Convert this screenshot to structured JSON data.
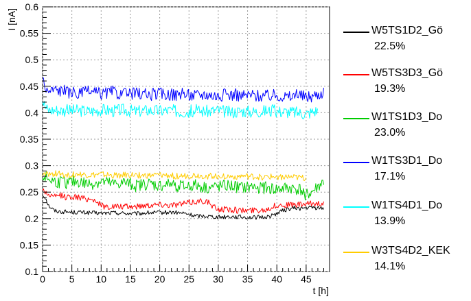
{
  "chart_data": {
    "type": "line",
    "xlabel": "t [h]",
    "ylabel": "I [nA]",
    "xlim": [
      0,
      49
    ],
    "ylim": [
      0.1,
      0.6
    ],
    "x_ticks": [
      0,
      5,
      10,
      15,
      20,
      25,
      30,
      35,
      40,
      45
    ],
    "y_ticks": [
      0.1,
      0.15,
      0.2,
      0.25,
      0.3,
      0.35,
      0.4,
      0.45,
      0.5,
      0.55,
      0.6
    ],
    "x_tick_labels": [
      "0",
      "5",
      "10",
      "15",
      "20",
      "25",
      "30",
      "35",
      "40",
      "45"
    ],
    "y_tick_labels": [
      "0.1",
      "0.15",
      "0.2",
      "0.25",
      "0.3",
      "0.35",
      "0.4",
      "0.45",
      "0.5",
      "0.55",
      "0.6"
    ],
    "grid": true,
    "legend_position": "right",
    "series": [
      {
        "name": "W5TS1D2_Gö",
        "percent": "22.5%",
        "color": "#000000",
        "x": [
          0,
          0.5,
          1,
          1.5,
          2,
          3,
          4,
          5,
          6,
          8,
          10,
          12,
          14,
          16,
          18,
          20,
          22,
          24,
          25,
          26,
          28,
          30,
          32,
          34,
          36,
          38,
          39,
          40,
          41,
          42,
          43,
          44,
          45,
          46,
          47,
          48
        ],
        "y": [
          0.245,
          0.24,
          0.225,
          0.22,
          0.215,
          0.213,
          0.213,
          0.212,
          0.212,
          0.211,
          0.21,
          0.211,
          0.21,
          0.209,
          0.211,
          0.211,
          0.212,
          0.21,
          0.208,
          0.205,
          0.205,
          0.203,
          0.204,
          0.203,
          0.202,
          0.203,
          0.205,
          0.21,
          0.215,
          0.218,
          0.22,
          0.219,
          0.22,
          0.221,
          0.22,
          0.22
        ]
      },
      {
        "name": "W5TS3D3_Gö",
        "percent": "19.3%",
        "color": "#ff0000",
        "x": [
          0,
          1,
          2,
          3,
          4,
          5,
          6,
          7,
          8,
          9,
          10,
          11,
          12,
          14,
          16,
          18,
          20,
          22,
          24,
          26,
          28,
          29,
          30,
          31,
          32,
          34,
          36,
          38,
          40,
          42,
          44,
          46,
          48
        ],
        "y": [
          0.255,
          0.245,
          0.24,
          0.245,
          0.24,
          0.242,
          0.24,
          0.238,
          0.237,
          0.235,
          0.225,
          0.222,
          0.223,
          0.222,
          0.223,
          0.226,
          0.227,
          0.226,
          0.228,
          0.232,
          0.234,
          0.222,
          0.218,
          0.218,
          0.217,
          0.215,
          0.216,
          0.217,
          0.225,
          0.226,
          0.226,
          0.228,
          0.23
        ]
      },
      {
        "name": "W1TS1D3_Do",
        "percent": "23.0%",
        "color": "#00cc00",
        "x": [
          0,
          2,
          4,
          6,
          8,
          10,
          12,
          14,
          16,
          18,
          20,
          22,
          24,
          26,
          28,
          30,
          32,
          34,
          36,
          38,
          40,
          42,
          44,
          45,
          46,
          47,
          48
        ],
        "y": [
          0.28,
          0.27,
          0.268,
          0.27,
          0.265,
          0.27,
          0.265,
          0.268,
          0.262,
          0.266,
          0.262,
          0.265,
          0.26,
          0.263,
          0.258,
          0.26,
          0.262,
          0.258,
          0.26,
          0.258,
          0.255,
          0.258,
          0.255,
          0.245,
          0.25,
          0.26,
          0.27
        ]
      },
      {
        "name": "W1TS3D1_Do",
        "percent": "17.1%",
        "color": "#0000ff",
        "x": [
          0,
          0.3,
          1,
          2,
          4,
          6,
          8,
          10,
          12,
          14,
          16,
          18,
          20,
          22,
          24,
          26,
          28,
          30,
          32,
          34,
          36,
          38,
          40,
          42,
          44,
          45,
          46,
          47,
          48
        ],
        "y": [
          0.47,
          0.45,
          0.44,
          0.445,
          0.44,
          0.435,
          0.44,
          0.436,
          0.44,
          0.434,
          0.438,
          0.434,
          0.437,
          0.434,
          0.435,
          0.433,
          0.436,
          0.432,
          0.435,
          0.433,
          0.434,
          0.432,
          0.434,
          0.43,
          0.433,
          0.43,
          0.432,
          0.435,
          0.44
        ]
      },
      {
        "name": "W1TS4D1_Do",
        "percent": "13.9%",
        "color": "#00ffff",
        "x": [
          0,
          0.5,
          1,
          2,
          4,
          6,
          8,
          10,
          12,
          14,
          16,
          18,
          20,
          22,
          24,
          26,
          28,
          30,
          32,
          34,
          36,
          38,
          40,
          42,
          44,
          45,
          46,
          47
        ],
        "y": [
          0.425,
          0.41,
          0.405,
          0.406,
          0.404,
          0.405,
          0.403,
          0.406,
          0.404,
          0.406,
          0.403,
          0.405,
          0.404,
          0.405,
          0.402,
          0.404,
          0.403,
          0.405,
          0.401,
          0.404,
          0.402,
          0.404,
          0.403,
          0.402,
          0.4,
          0.398,
          0.402,
          0.405
        ]
      },
      {
        "name": "W3TS4D2_KEK",
        "percent": "14.1%",
        "color": "#ffcc00",
        "x": [
          0,
          2,
          4,
          6,
          8,
          10,
          12,
          14,
          16,
          18,
          20,
          22,
          24,
          26,
          28,
          30,
          32,
          34,
          36,
          38,
          40,
          42,
          44,
          45
        ],
        "y": [
          0.282,
          0.285,
          0.283,
          0.284,
          0.282,
          0.283,
          0.281,
          0.282,
          0.282,
          0.281,
          0.282,
          0.281,
          0.28,
          0.282,
          0.28,
          0.281,
          0.279,
          0.28,
          0.279,
          0.278,
          0.279,
          0.278,
          0.277,
          0.276
        ]
      }
    ]
  }
}
